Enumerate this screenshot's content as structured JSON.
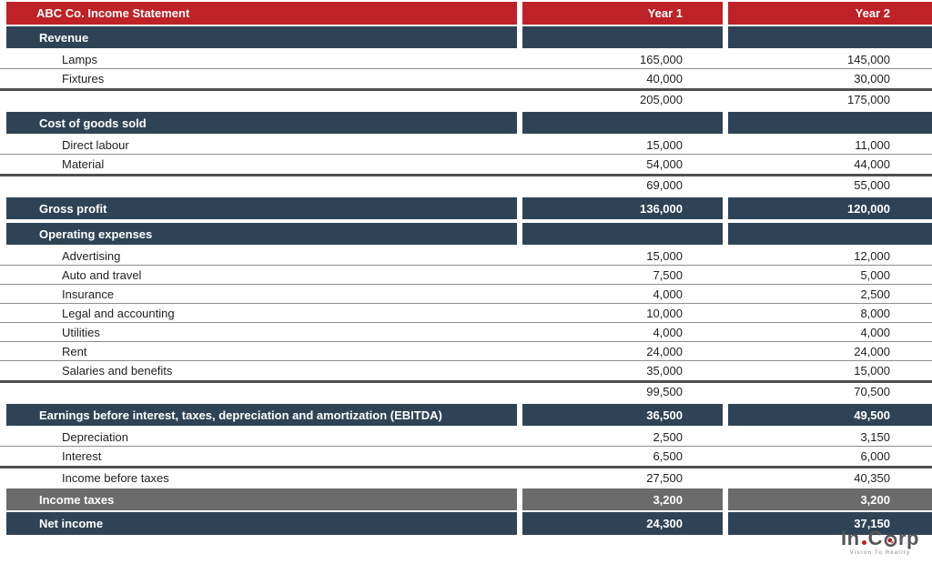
{
  "statement": {
    "rows": [
      {
        "kind": "red",
        "label": "ABC Co. Income Statement",
        "v1": "Year 1",
        "v2": "Year 2"
      },
      {
        "kind": "bar",
        "label": "Revenue",
        "v1": "",
        "v2": ""
      },
      {
        "kind": "item",
        "label": "Lamps",
        "v1": "165,000",
        "v2": "145,000"
      },
      {
        "kind": "item",
        "label": "Fixtures",
        "v1": "40,000",
        "v2": "30,000"
      },
      {
        "kind": "sub",
        "label": "",
        "v1": "205,000",
        "v2": "175,000"
      },
      {
        "kind": "bar",
        "label": "Cost of goods sold",
        "v1": "",
        "v2": ""
      },
      {
        "kind": "item",
        "label": "Direct labour",
        "v1": "15,000",
        "v2": "11,000"
      },
      {
        "kind": "item",
        "label": "Material",
        "v1": "54,000",
        "v2": "44,000"
      },
      {
        "kind": "sub",
        "label": "",
        "v1": "69,000",
        "v2": "55,000"
      },
      {
        "kind": "bar",
        "label": "Gross profit",
        "v1": "136,000",
        "v2": "120,000"
      },
      {
        "kind": "bar",
        "label": "Operating expenses",
        "v1": "",
        "v2": ""
      },
      {
        "kind": "item",
        "label": "Advertising",
        "v1": "15,000",
        "v2": "12,000"
      },
      {
        "kind": "item",
        "label": "Auto and travel",
        "v1": "7,500",
        "v2": "5,000"
      },
      {
        "kind": "item",
        "label": "Insurance",
        "v1": "4,000",
        "v2": "2,500"
      },
      {
        "kind": "item",
        "label": "Legal and accounting",
        "v1": "10,000",
        "v2": "8,000"
      },
      {
        "kind": "item",
        "label": "Utilities",
        "v1": "4,000",
        "v2": "4,000"
      },
      {
        "kind": "item",
        "label": "Rent",
        "v1": "24,000",
        "v2": "24,000"
      },
      {
        "kind": "item",
        "label": "Salaries and benefits",
        "v1": "35,000",
        "v2": "15,000"
      },
      {
        "kind": "sub",
        "label": "",
        "v1": "99,500",
        "v2": "70,500"
      },
      {
        "kind": "bar",
        "label": "Earnings before interest, taxes, depreciation and amortization (EBITDA)",
        "v1": "36,500",
        "v2": "49,500"
      },
      {
        "kind": "item",
        "label": "Depreciation",
        "v1": "2,500",
        "v2": "3,150"
      },
      {
        "kind": "item",
        "label": "Interest",
        "v1": "6,500",
        "v2": "6,000"
      },
      {
        "kind": "item-thick",
        "label": "Income before taxes",
        "v1": "27,500",
        "v2": "40,350"
      },
      {
        "kind": "gray",
        "label": "Income taxes",
        "v1": "3,200",
        "v2": "3,200"
      },
      {
        "kind": "bar",
        "label": "Net income",
        "v1": "24,300",
        "v2": "37,150"
      }
    ]
  },
  "logo": {
    "text_left": "In",
    "text_mid": "C",
    "text_right": "rp",
    "tagline": "Vision To Reality"
  },
  "colors": {
    "header_red": "#BE2126",
    "section_slate": "#2E4456",
    "tax_gray": "#6B6B6B"
  }
}
